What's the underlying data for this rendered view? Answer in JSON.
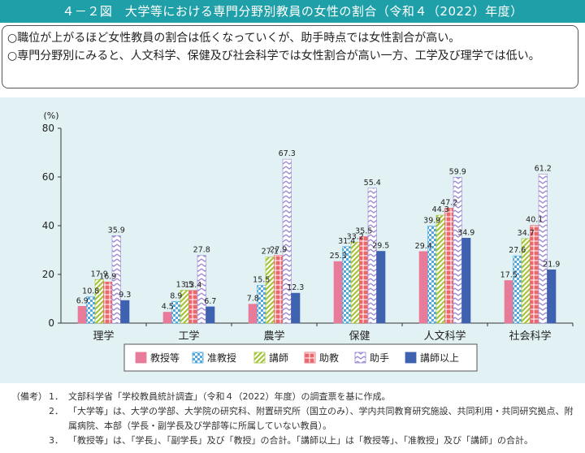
{
  "header": {
    "title": "４－２図　大学等における専門分野別教員の女性の割合（令和４（2022）年度）"
  },
  "summary": {
    "line1": "○職位が上がるほど女性教員の割合は低くなっていくが、助手時点では女性割合が高い。",
    "line2": "○専門分野別にみると、人文科学、保健及び社会科学では女性割合が高い一方、工学及び理学では低い。"
  },
  "chart_data": {
    "type": "bar",
    "unit_label": "(%)",
    "ylim": [
      0,
      80
    ],
    "yticks": [
      0,
      20,
      40,
      60,
      80
    ],
    "categories": [
      "理学",
      "工学",
      "農学",
      "保健",
      "人文科学",
      "社会科学"
    ],
    "series": [
      {
        "name": "教授等",
        "values": [
          6.9,
          4.5,
          7.8,
          25.3,
          29.4,
          17.5
        ]
      },
      {
        "name": "准教授",
        "values": [
          10.8,
          8.9,
          15.5,
          31.4,
          39.9,
          27.6
        ]
      },
      {
        "name": "講師",
        "values": [
          17.9,
          13.5,
          27.1,
          33.2,
          44.3,
          34.7
        ]
      },
      {
        "name": "助教",
        "values": [
          16.9,
          13.4,
          27.9,
          35.5,
          47.2,
          40.1
        ]
      },
      {
        "name": "助手",
        "values": [
          35.9,
          27.8,
          67.3,
          55.4,
          59.9,
          61.2
        ]
      },
      {
        "name": "講師以上",
        "values": [
          9.3,
          6.7,
          12.3,
          29.5,
          34.9,
          21.9
        ]
      }
    ],
    "colors": [
      "#e87a9a",
      "#4fa8e0",
      "#a6c43a",
      "#e8686e",
      "#9a87d0",
      "#3f62b0"
    ],
    "grid": false,
    "legend_position": "bottom"
  },
  "notes": {
    "head": "（備考）",
    "items": [
      {
        "num": "1．",
        "text": "文部科学省「学校教員統計調査」（令和４（2022）年度）の調査票を基に作成。"
      },
      {
        "num": "2．",
        "text": "「大学等」は、大学の学部、大学院の研究科、附置研究所（国立のみ）、学内共同教育研究施設、共同利用・共同研究拠点、附属病院、本部（学長・副学長及び学部等に所属していない教員）。"
      },
      {
        "num": "3．",
        "text": "「教授等」は、「学長」、「副学長」及び「教授」の合計。「講師以上」は「教授等」、「准教授」及び「講師」の合計。"
      }
    ]
  }
}
